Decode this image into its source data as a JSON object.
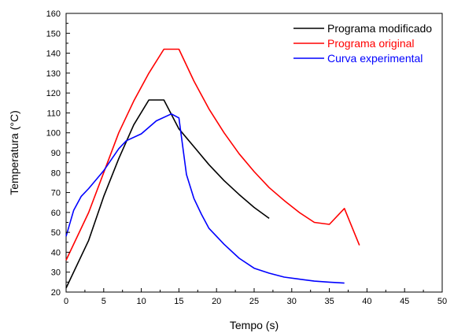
{
  "chart_data": {
    "type": "line",
    "title": "",
    "xlabel": "Tempo (s)",
    "ylabel": "Temperatura (°C)",
    "xlim": [
      0,
      50
    ],
    "ylim": [
      20,
      160
    ],
    "xticks": [
      0,
      5,
      10,
      15,
      20,
      25,
      30,
      35,
      40,
      45,
      50
    ],
    "yticks": [
      20,
      30,
      40,
      50,
      60,
      70,
      80,
      90,
      100,
      110,
      120,
      130,
      140,
      150,
      160
    ],
    "grid": false,
    "legend_position": "top-right",
    "series": [
      {
        "name": "Programa modificado",
        "color": "#000000",
        "points": [
          [
            0,
            22
          ],
          [
            3,
            46
          ],
          [
            5,
            68
          ],
          [
            7,
            87
          ],
          [
            9,
            104
          ],
          [
            11,
            116.5
          ],
          [
            13,
            116.5
          ],
          [
            15,
            102
          ],
          [
            17,
            93
          ],
          [
            19,
            84
          ],
          [
            21,
            76
          ],
          [
            23,
            69
          ],
          [
            25,
            62.5
          ],
          [
            27,
            57
          ]
        ]
      },
      {
        "name": "Programa original",
        "color": "#ff0000",
        "points": [
          [
            0,
            36
          ],
          [
            3,
            60
          ],
          [
            5,
            80
          ],
          [
            7,
            100
          ],
          [
            9,
            116
          ],
          [
            11,
            130
          ],
          [
            13,
            142
          ],
          [
            15,
            142
          ],
          [
            17,
            126
          ],
          [
            19,
            112
          ],
          [
            21,
            100
          ],
          [
            23,
            89.5
          ],
          [
            25,
            80.5
          ],
          [
            27,
            72.5
          ],
          [
            29,
            66
          ],
          [
            31,
            60
          ],
          [
            33,
            55
          ],
          [
            35,
            54
          ],
          [
            37,
            62
          ],
          [
            39,
            43.5
          ]
        ]
      },
      {
        "name": "Curva experimental",
        "color": "#0000ff",
        "points": [
          [
            0,
            48
          ],
          [
            1,
            61
          ],
          [
            2,
            68
          ],
          [
            3,
            72
          ],
          [
            5,
            81
          ],
          [
            7,
            92
          ],
          [
            8,
            96
          ],
          [
            10,
            99.5
          ],
          [
            12,
            106
          ],
          [
            14,
            109.5
          ],
          [
            15,
            107.5
          ],
          [
            16,
            79
          ],
          [
            17,
            67
          ],
          [
            18,
            59
          ],
          [
            19,
            52
          ],
          [
            21,
            44
          ],
          [
            23,
            37
          ],
          [
            25,
            32
          ],
          [
            27,
            29.5
          ],
          [
            29,
            27.5
          ],
          [
            31,
            26.5
          ],
          [
            33,
            25.5
          ],
          [
            35,
            25
          ],
          [
            37,
            24.5
          ]
        ]
      }
    ]
  }
}
